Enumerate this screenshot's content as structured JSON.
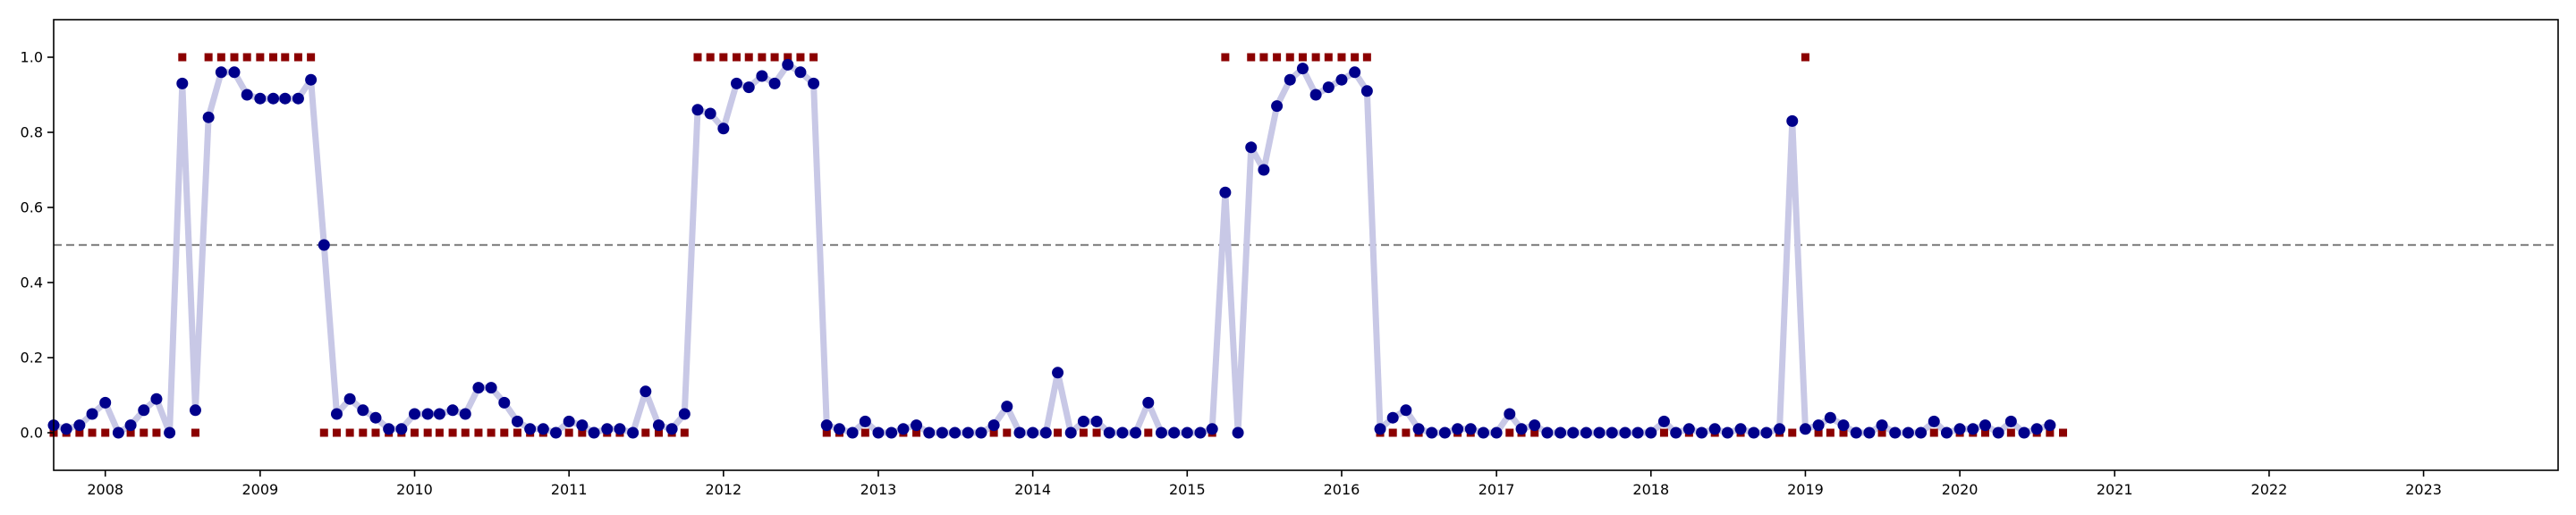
{
  "chart_data": {
    "type": "line",
    "title": "",
    "xlabel": "",
    "ylabel": "",
    "x_axis": {
      "type": "date",
      "range": [
        "2007-09-01",
        "2023-11-15"
      ],
      "ticks": [
        "2008",
        "2009",
        "2010",
        "2011",
        "2012",
        "2013",
        "2014",
        "2015",
        "2016",
        "2017",
        "2018",
        "2019",
        "2020",
        "2021",
        "2022",
        "2023"
      ]
    },
    "y_axis": {
      "range": [
        -0.1,
        1.1
      ],
      "ticks": [
        "0.0",
        "0.2",
        "0.4",
        "0.6",
        "0.8",
        "1.0"
      ]
    },
    "threshold": {
      "value": 0.5,
      "color": "#888888",
      "style": "dashed"
    },
    "grid": false,
    "legend": "none",
    "start_date": "2007-09",
    "series": [
      {
        "role": "probability",
        "line_color": "#c8c8e6",
        "marker_color": "#00008b",
        "marker": "circle",
        "values": [
          0.02,
          0.01,
          0.02,
          0.05,
          0.08,
          0.0,
          0.02,
          0.06,
          0.09,
          0.0,
          0.93,
          0.06,
          0.84,
          0.96,
          0.96,
          0.9,
          0.89,
          0.89,
          0.89,
          0.89,
          0.94,
          0.5,
          0.05,
          0.09,
          0.06,
          0.04,
          0.01,
          0.01,
          0.05,
          0.05,
          0.05,
          0.06,
          0.05,
          0.12,
          0.12,
          0.08,
          0.03,
          0.01,
          0.01,
          0.0,
          0.03,
          0.02,
          0.0,
          0.01,
          0.01,
          0.0,
          0.11,
          0.02,
          0.01,
          0.05,
          0.86,
          0.85,
          0.81,
          0.93,
          0.92,
          0.95,
          0.93,
          0.98,
          0.96,
          0.93,
          0.02,
          0.01,
          0.0,
          0.03,
          0.0,
          0.0,
          0.01,
          0.02,
          0.0,
          0.0,
          0.0,
          0.0,
          0.0,
          0.02,
          0.07,
          0.0,
          0.0,
          0.0,
          0.16,
          0.0,
          0.03,
          0.03,
          0.0,
          0.0,
          0.0,
          0.08,
          0.0,
          0.0,
          0.0,
          0.0,
          0.01,
          0.64,
          0.0,
          0.76,
          0.7,
          0.87,
          0.94,
          0.97,
          0.9,
          0.92,
          0.94,
          0.96,
          0.91,
          0.01,
          0.04,
          0.06,
          0.01,
          0.0,
          0.0,
          0.01,
          0.01,
          0.0,
          0.0,
          0.05,
          0.01,
          0.02,
          0.0,
          0.0,
          0.0,
          0.0,
          0.0,
          0.0,
          0.0,
          0.0,
          0.0,
          0.03,
          0.0,
          0.01,
          0.0,
          0.01,
          0.0,
          0.01,
          0.0,
          0.0,
          0.01,
          0.83,
          0.01,
          0.02,
          0.04,
          0.02,
          0.0,
          0.0,
          0.02,
          0.0,
          0.0,
          0.0,
          0.03,
          0.0,
          0.01,
          0.01,
          0.02,
          0.0,
          0.03,
          0.0,
          0.01,
          0.02
        ]
      },
      {
        "role": "label",
        "marker_color": "#8b0000",
        "marker": "square",
        "values": [
          0,
          0,
          0,
          0,
          0,
          0,
          0,
          0,
          0,
          0,
          1,
          0,
          1,
          1,
          1,
          1,
          1,
          1,
          1,
          1,
          1,
          0,
          0,
          0,
          0,
          0,
          0,
          0,
          0,
          0,
          0,
          0,
          0,
          0,
          0,
          0,
          0,
          0,
          0,
          0,
          0,
          0,
          0,
          0,
          0,
          0,
          0,
          0,
          0,
          0,
          1,
          1,
          1,
          1,
          1,
          1,
          1,
          1,
          1,
          1,
          0,
          0,
          0,
          0,
          0,
          0,
          0,
          0,
          0,
          0,
          0,
          0,
          0,
          0,
          0,
          0,
          0,
          0,
          0,
          0,
          0,
          0,
          0,
          0,
          0,
          0,
          0,
          0,
          0,
          0,
          0,
          1,
          0,
          1,
          1,
          1,
          1,
          1,
          1,
          1,
          1,
          1,
          1,
          0,
          0,
          0,
          0,
          0,
          0,
          0,
          0,
          0,
          0,
          0,
          0,
          0,
          0,
          0,
          0,
          0,
          0,
          0,
          0,
          0,
          0,
          0,
          0,
          0,
          0,
          0,
          0,
          0,
          0,
          0,
          0,
          0,
          1,
          0,
          0,
          0,
          0,
          0,
          0,
          0,
          0,
          0,
          0,
          0,
          0,
          0,
          0,
          0,
          0,
          0,
          0,
          0,
          0
        ]
      }
    ]
  }
}
